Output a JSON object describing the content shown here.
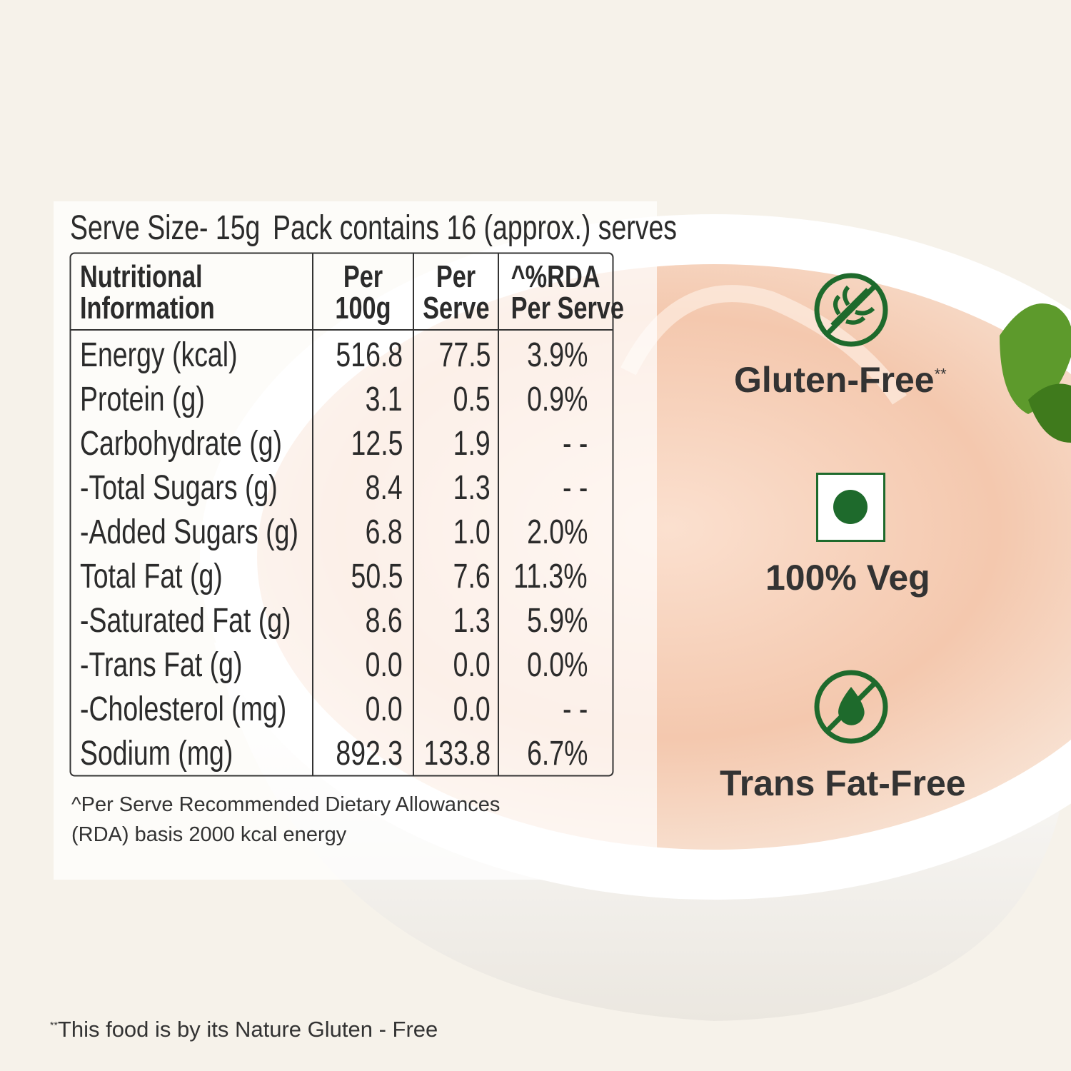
{
  "serve_size": "Serve Size- 15g",
  "pack_contains": "Pack contains 16 (approx.) serves",
  "table": {
    "header": [
      [
        "Nutritional",
        "Information"
      ],
      [
        "Per",
        "100g"
      ],
      [
        "Per",
        "Serve"
      ],
      [
        "^%RDA",
        "Per Serve"
      ]
    ],
    "rows": [
      [
        "Energy (kcal)",
        "516.8",
        "77.5",
        "3.9%"
      ],
      [
        "Protein (g)",
        "3.1",
        "0.5",
        "0.9%"
      ],
      [
        "Carbohydrate (g)",
        "12.5",
        "1.9",
        "- -"
      ],
      [
        "-Total Sugars (g)",
        "8.4",
        "1.3",
        "- -"
      ],
      [
        "-Added Sugars (g)",
        "6.8",
        "1.0",
        "2.0%"
      ],
      [
        "Total Fat (g)",
        "50.5",
        "7.6",
        "11.3%"
      ],
      [
        "-Saturated Fat (g)",
        "8.6",
        "1.3",
        "5.9%"
      ],
      [
        "-Trans Fat (g)",
        "0.0",
        "0.0",
        "0.0%"
      ],
      [
        "-Cholesterol (mg)",
        "0.0",
        "0.0",
        "- -"
      ],
      [
        "Sodium (mg)",
        "892.3",
        "133.8",
        "6.7%"
      ]
    ]
  },
  "footnote": [
    "^Per Serve Recommended Dietary Allowances",
    "(RDA) basis 2000 kcal energy"
  ],
  "badges": {
    "gluten_free": "Gluten-Free",
    "gluten_free_mark": "**",
    "veg": "100% Veg",
    "trans_fat_free": "Trans Fat-Free"
  },
  "bottom_note": {
    "mark": "**",
    "text": "This food is by its Nature Gluten - Free"
  }
}
